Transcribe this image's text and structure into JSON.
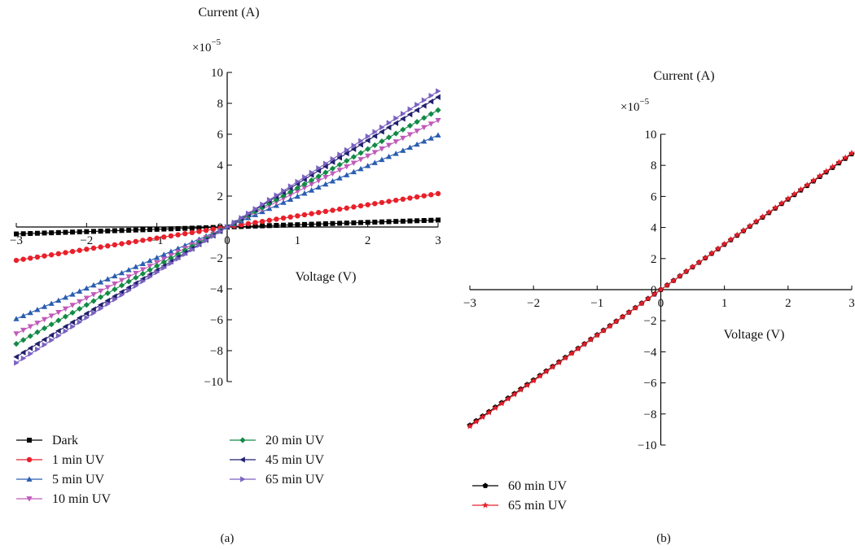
{
  "chart_data": [
    {
      "type": "line",
      "caption": "(a)",
      "xlabel": "Voltage (V)",
      "ylabel": "Current (A)",
      "y_multiplier": {
        "base": "×10",
        "exponent": "−5"
      },
      "xlim": [
        -3,
        3
      ],
      "ylim": [
        -10,
        10
      ],
      "x_ticks": [
        {
          "v": -3,
          "t": "−3"
        },
        {
          "v": -2,
          "t": "−2"
        },
        {
          "v": -1,
          "t": "−1"
        },
        {
          "v": 0,
          "t": "0"
        },
        {
          "v": 1,
          "t": "1"
        },
        {
          "v": 2,
          "t": "2"
        },
        {
          "v": 3,
          "t": "3"
        }
      ],
      "y_ticks": [
        {
          "v": -10,
          "t": "−10"
        },
        {
          "v": -8,
          "t": "−8"
        },
        {
          "v": -6,
          "t": "−6"
        },
        {
          "v": -4,
          "t": "−4"
        },
        {
          "v": -2,
          "t": "−2"
        },
        {
          "v": 0,
          "t": "0"
        },
        {
          "v": 2,
          "t": "2"
        },
        {
          "v": 4,
          "t": "4"
        },
        {
          "v": 6,
          "t": "6"
        },
        {
          "v": 8,
          "t": "8"
        },
        {
          "v": 10,
          "t": "10"
        }
      ],
      "x_step": 0.1,
      "series": [
        {
          "name": "Dark",
          "slope": 0.15,
          "color": "#000000",
          "marker": "square"
        },
        {
          "name": "1 min UV",
          "slope": 0.72,
          "color": "#e8202a",
          "marker": "circle"
        },
        {
          "name": "5 min UV",
          "slope": 1.98,
          "color": "#2a5db0",
          "marker": "triangle-up"
        },
        {
          "name": "10 min UV",
          "slope": 2.3,
          "color": "#c05aba",
          "marker": "triangle-down"
        },
        {
          "name": "20 min UV",
          "slope": 2.52,
          "color": "#138a46",
          "marker": "diamond"
        },
        {
          "name": "45 min UV",
          "slope": 2.8,
          "color": "#22206e",
          "marker": "triangle-left"
        },
        {
          "name": "65 min UV",
          "slope": 2.93,
          "color": "#7b62c0",
          "marker": "triangle-right"
        }
      ]
    },
    {
      "type": "line",
      "caption": "(b)",
      "xlabel": "Voltage (V)",
      "ylabel": "Current (A)",
      "y_multiplier": {
        "base": "×10",
        "exponent": "−5"
      },
      "xlim": [
        -3,
        3
      ],
      "ylim": [
        -10,
        10
      ],
      "x_ticks": [
        {
          "v": -3,
          "t": "−3"
        },
        {
          "v": -2,
          "t": "−2"
        },
        {
          "v": -1,
          "t": "−1"
        },
        {
          "v": 0,
          "t": "0"
        },
        {
          "v": 1,
          "t": "1"
        },
        {
          "v": 2,
          "t": "2"
        },
        {
          "v": 3,
          "t": "3"
        }
      ],
      "y_ticks": [
        {
          "v": -10,
          "t": "−10"
        },
        {
          "v": -8,
          "t": "−8"
        },
        {
          "v": -6,
          "t": "−6"
        },
        {
          "v": -4,
          "t": "−4"
        },
        {
          "v": -2,
          "t": "−2"
        },
        {
          "v": 0,
          "t": "0"
        },
        {
          "v": 2,
          "t": "2"
        },
        {
          "v": 4,
          "t": "4"
        },
        {
          "v": 6,
          "t": "6"
        },
        {
          "v": 8,
          "t": "8"
        },
        {
          "v": 10,
          "t": "10"
        }
      ],
      "x_step": 0.1,
      "series": [
        {
          "name": "60 min UV",
          "slope": 2.91,
          "color": "#000000",
          "marker": "pentagon"
        },
        {
          "name": "65 min UV",
          "slope": 2.93,
          "color": "#e8202a",
          "marker": "star"
        }
      ]
    }
  ]
}
